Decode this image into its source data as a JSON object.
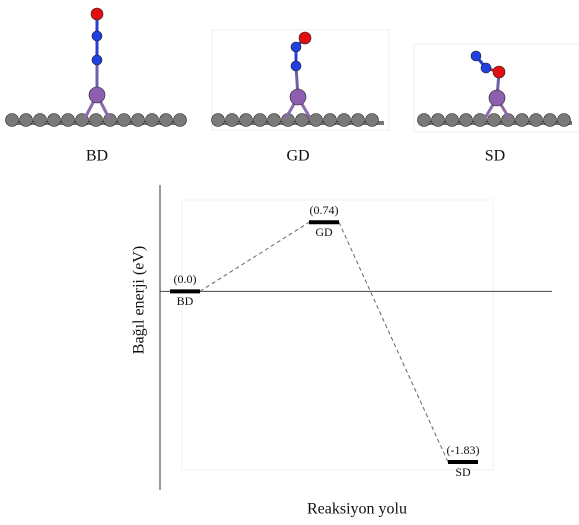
{
  "chart_data": {
    "type": "energy",
    "categories": [
      "BD",
      "GD",
      "SD"
    ],
    "values": [
      0.0,
      0.74,
      -1.83
    ],
    "value_labels": [
      "(0.0)",
      "(0.74)",
      "(-1.83)"
    ],
    "ylabel": "Bağıl enerji (eV)",
    "xlabel": "Reaksiyon yolu",
    "ylim": [
      -2.13,
      1.14
    ]
  }
}
